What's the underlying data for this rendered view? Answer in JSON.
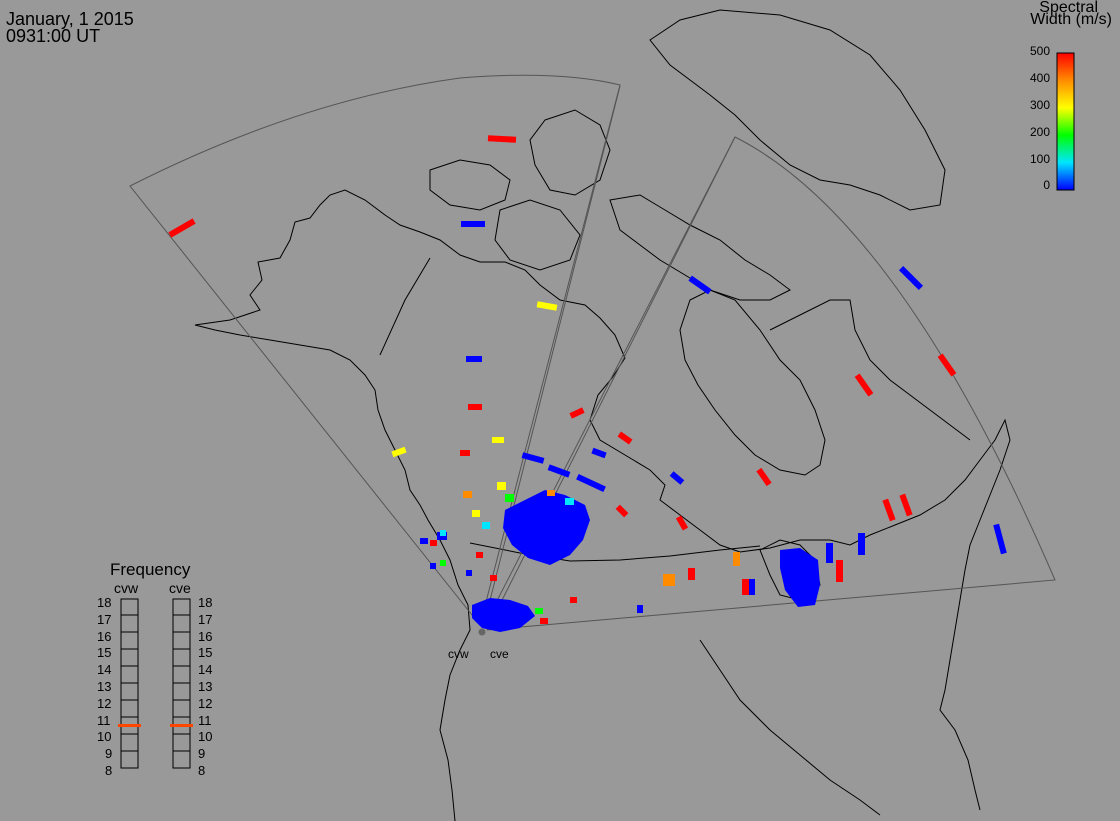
{
  "header": {
    "date": "January, 1 2015",
    "time": "0931:00 UT"
  },
  "color_scale": {
    "title_line1": "Spectral",
    "title_line2": "Width (m/s)",
    "ticks": [
      "500",
      "400",
      "300",
      "200",
      "100",
      "0"
    ],
    "colors": [
      "#ff0000",
      "#ff8c00",
      "#ffff00",
      "#00ff00",
      "#00e5ff",
      "#0000ff"
    ]
  },
  "frequency_panel": {
    "title": "Frequency",
    "columns": [
      "cvw",
      "cve"
    ],
    "ticks": [
      "18",
      "17",
      "16",
      "15",
      "14",
      "13",
      "12",
      "11",
      "10",
      "9",
      "8"
    ],
    "marker_value_mhz": 10.6,
    "marker_color": "#ff4500"
  },
  "radar_sites": [
    "cvw",
    "cve"
  ],
  "colors": {
    "background": "#999999",
    "land_outline": "#000000",
    "fov_outline": "#555555"
  }
}
